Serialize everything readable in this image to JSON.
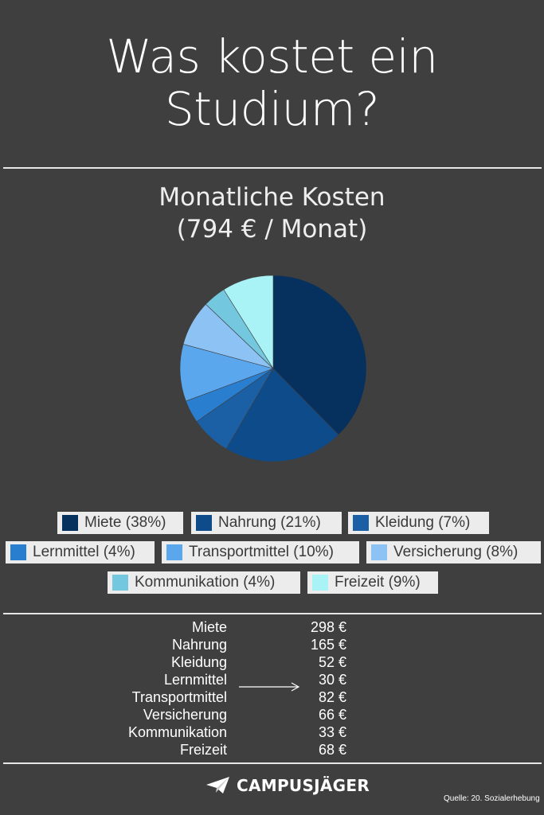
{
  "header": {
    "title_line1": "Was kostet ein",
    "title_line2": "Studium?"
  },
  "chart_data": {
    "type": "pie",
    "title": "Monatliche Kosten",
    "subtitle": "(794 € / Monat)",
    "slices": [
      {
        "label": "Miete",
        "percent": 38,
        "legend": "Miete (38%)",
        "color": "#06305e"
      },
      {
        "label": "Nahrung",
        "percent": 21,
        "legend": "Nahrung (21%)",
        "color": "#0d4b8b"
      },
      {
        "label": "Kleidung",
        "percent": 7,
        "legend": "Kleidung (7%)",
        "color": "#1b5fa5"
      },
      {
        "label": "Lernmittel",
        "percent": 4,
        "legend": "Lernmittel (4%)",
        "color": "#2a7ed0"
      },
      {
        "label": "Transportmittel",
        "percent": 10,
        "legend": "Transportmittel (10%)",
        "color": "#5aa7ee"
      },
      {
        "label": "Versicherung",
        "percent": 8,
        "legend": "Versicherung (8%)",
        "color": "#8cc3f4"
      },
      {
        "label": "Kommunikation",
        "percent": 4,
        "legend": "Kommunikation (4%)",
        "color": "#73c8e0"
      },
      {
        "label": "Freizeit",
        "percent": 9,
        "legend": "Freizeit (9%)",
        "color": "#a9f2f6"
      }
    ]
  },
  "costs": [
    {
      "label": "Miete",
      "value": "298 €"
    },
    {
      "label": "Nahrung",
      "value": "165 €"
    },
    {
      "label": "Kleidung",
      "value": "52 €"
    },
    {
      "label": "Lernmittel",
      "value": "30 €"
    },
    {
      "label": "Transportmittel",
      "value": "82 €"
    },
    {
      "label": "Versicherung",
      "value": "66 €"
    },
    {
      "label": "Kommunikation",
      "value": "33 €"
    },
    {
      "label": "Freizeit",
      "value": "68 €"
    }
  ],
  "footer": {
    "brand": "CAMPUSJÄGER",
    "source": "Quelle: 20. Sozialerhebung"
  }
}
